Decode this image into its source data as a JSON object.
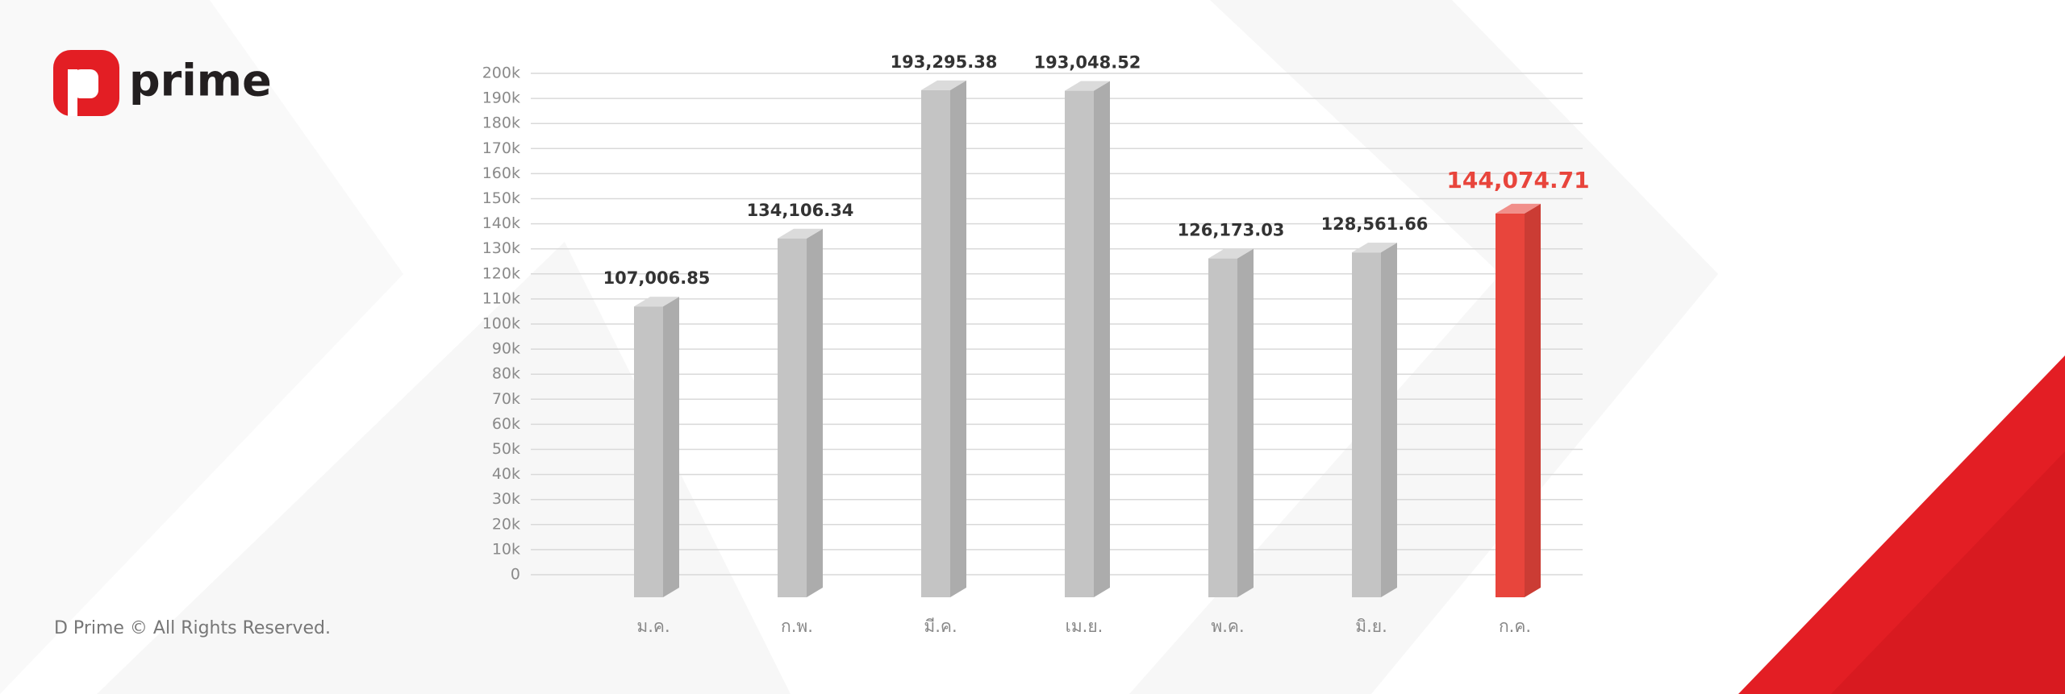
{
  "logo": "prime",
  "footer": "D Prime © All Rights Reserved.",
  "chart_data": {
    "type": "bar",
    "categories": [
      "ม.ค.",
      "ก.พ.",
      "มี.ค.",
      "เม.ย.",
      "พ.ค.",
      "มิ.ย.",
      "ก.ค."
    ],
    "values": [
      107006.85,
      134106.34,
      193295.38,
      193048.52,
      126173.03,
      128561.66,
      144074.71
    ],
    "value_labels": [
      "107,006.85",
      "134,106.34",
      "193,295.38",
      "193,048.52",
      "126,173.03",
      "128,561.66",
      "144,074.71"
    ],
    "colors": [
      "#c4c4c4",
      "#c4c4c4",
      "#c4c4c4",
      "#c4c4c4",
      "#c4c4c4",
      "#c4c4c4",
      "#e8453c"
    ],
    "ylim": [
      0,
      200000
    ],
    "yticks": [
      0,
      {
        "value": 10000,
        "label": "10k"
      },
      {
        "value": 20000,
        "label": "20k"
      },
      {
        "value": 30000,
        "label": "30k"
      },
      {
        "value": 40000,
        "label": "40k"
      },
      {
        "value": 50000,
        "label": "50k"
      },
      {
        "value": 60000,
        "label": "60k"
      },
      {
        "value": 70000,
        "label": "70k"
      },
      {
        "value": 80000,
        "label": "80k"
      },
      {
        "value": 90000,
        "label": "90k"
      },
      {
        "value": 100000,
        "label": "100k"
      },
      {
        "value": 110000,
        "label": "110k"
      },
      {
        "value": 120000,
        "label": "120k"
      },
      {
        "value": 130000,
        "label": "130k"
      },
      {
        "value": 140000,
        "label": "140k"
      },
      {
        "value": 150000,
        "label": "150k"
      },
      {
        "value": 160000,
        "label": "160k"
      },
      {
        "value": 170000,
        "label": "170k"
      },
      {
        "value": 180000,
        "label": "180k"
      },
      {
        "value": 190000,
        "label": "190k"
      },
      {
        "value": 200000,
        "label": "200k"
      }
    ],
    "grid": true
  }
}
